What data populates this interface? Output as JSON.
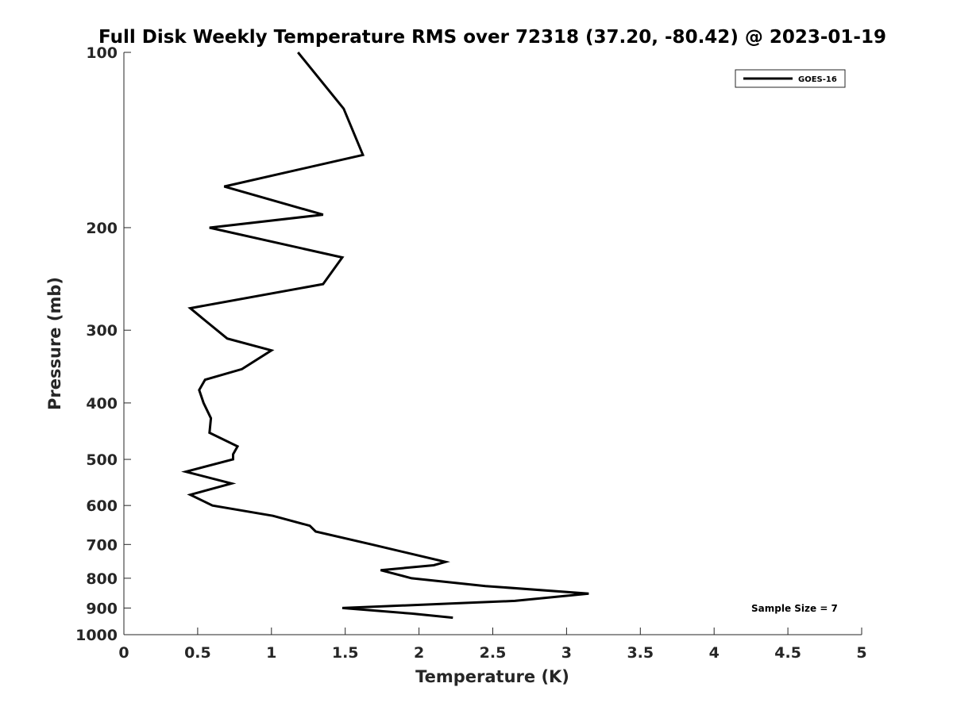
{
  "chart_data": {
    "type": "line",
    "title": "Full Disk Weekly Temperature RMS over 72318 (37.20, -80.42) @ 2023-01-19",
    "xlabel": "Temperature (K)",
    "ylabel": "Pressure (mb)",
    "xlim": [
      0,
      5
    ],
    "ylim": [
      100,
      1000
    ],
    "y_scale": "log",
    "y_reversed": true,
    "x_ticks": [
      "0",
      "0.5",
      "1",
      "1.5",
      "2",
      "2.5",
      "3",
      "3.5",
      "4",
      "4.5",
      "5"
    ],
    "y_ticks": [
      "100",
      "200",
      "300",
      "400",
      "500",
      "600",
      "700",
      "800",
      "900",
      "1000"
    ],
    "legend": {
      "position": "top-right",
      "entries": [
        "GOES-16"
      ]
    },
    "annotation": "Sample Size = 7",
    "grid": false,
    "series": [
      {
        "name": "GOES-16",
        "color": "#000000",
        "points": [
          [
            1.18,
            100
          ],
          [
            1.49,
            125
          ],
          [
            1.62,
            150
          ],
          [
            0.68,
            170
          ],
          [
            1.35,
            190
          ],
          [
            0.58,
            200
          ],
          [
            1.48,
            225
          ],
          [
            1.35,
            250
          ],
          [
            0.45,
            275
          ],
          [
            0.56,
            290
          ],
          [
            0.7,
            310
          ],
          [
            1.0,
            325
          ],
          [
            0.8,
            350
          ],
          [
            0.55,
            365
          ],
          [
            0.51,
            380
          ],
          [
            0.54,
            400
          ],
          [
            0.59,
            425
          ],
          [
            0.58,
            450
          ],
          [
            0.77,
            475
          ],
          [
            0.74,
            490
          ],
          [
            0.74,
            500
          ],
          [
            0.42,
            525
          ],
          [
            0.73,
            550
          ],
          [
            0.45,
            575
          ],
          [
            0.6,
            600
          ],
          [
            1.01,
            625
          ],
          [
            1.26,
            650
          ],
          [
            1.3,
            665
          ],
          [
            1.68,
            700
          ],
          [
            2.18,
            750
          ],
          [
            2.1,
            760
          ],
          [
            1.74,
            775
          ],
          [
            1.95,
            800
          ],
          [
            2.45,
            825
          ],
          [
            3.15,
            850
          ],
          [
            2.65,
            875
          ],
          [
            1.48,
            900
          ],
          [
            1.95,
            920
          ],
          [
            2.23,
            935
          ]
        ]
      }
    ]
  }
}
